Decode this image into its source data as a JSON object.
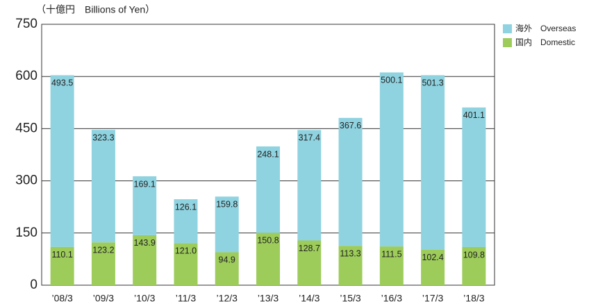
{
  "chart_data": {
    "type": "stacked_bar",
    "unit_label": "（十億円　Billions of Yen）",
    "categories": [
      "’08/3",
      "’09/3",
      "’10/3",
      "’11/3",
      "’12/3",
      "’13/3",
      "’14/3",
      "’15/3",
      "’16/3",
      "’17/3",
      "’18/3"
    ],
    "series": [
      {
        "name": "国内　Domestic",
        "color": "#9dcc5b",
        "values": [
          110.1,
          123.2,
          143.9,
          121.0,
          94.9,
          150.8,
          128.7,
          113.3,
          111.5,
          102.4,
          109.8
        ],
        "value_labels": [
          "110.1",
          "123.2",
          "143.9",
          "121.0",
          "94.9",
          "150.8",
          "128.7",
          "113.3",
          "111.5",
          "102.4",
          "109.8"
        ]
      },
      {
        "name": "海外　Overseas",
        "color": "#8fd3e0",
        "values": [
          493.5,
          323.3,
          169.1,
          126.1,
          159.8,
          248.1,
          317.4,
          367.6,
          500.1,
          501.3,
          401.1
        ],
        "value_labels": [
          "493.5",
          "323.3",
          "169.1",
          "126.1",
          "159.8",
          "248.1",
          "317.4",
          "367.6",
          "500.1",
          "501.3",
          "401.1"
        ]
      }
    ],
    "ylim": [
      0,
      750
    ],
    "yticks": [
      0,
      150,
      300,
      450,
      600,
      750
    ],
    "grid": true,
    "legend": "top-right"
  }
}
